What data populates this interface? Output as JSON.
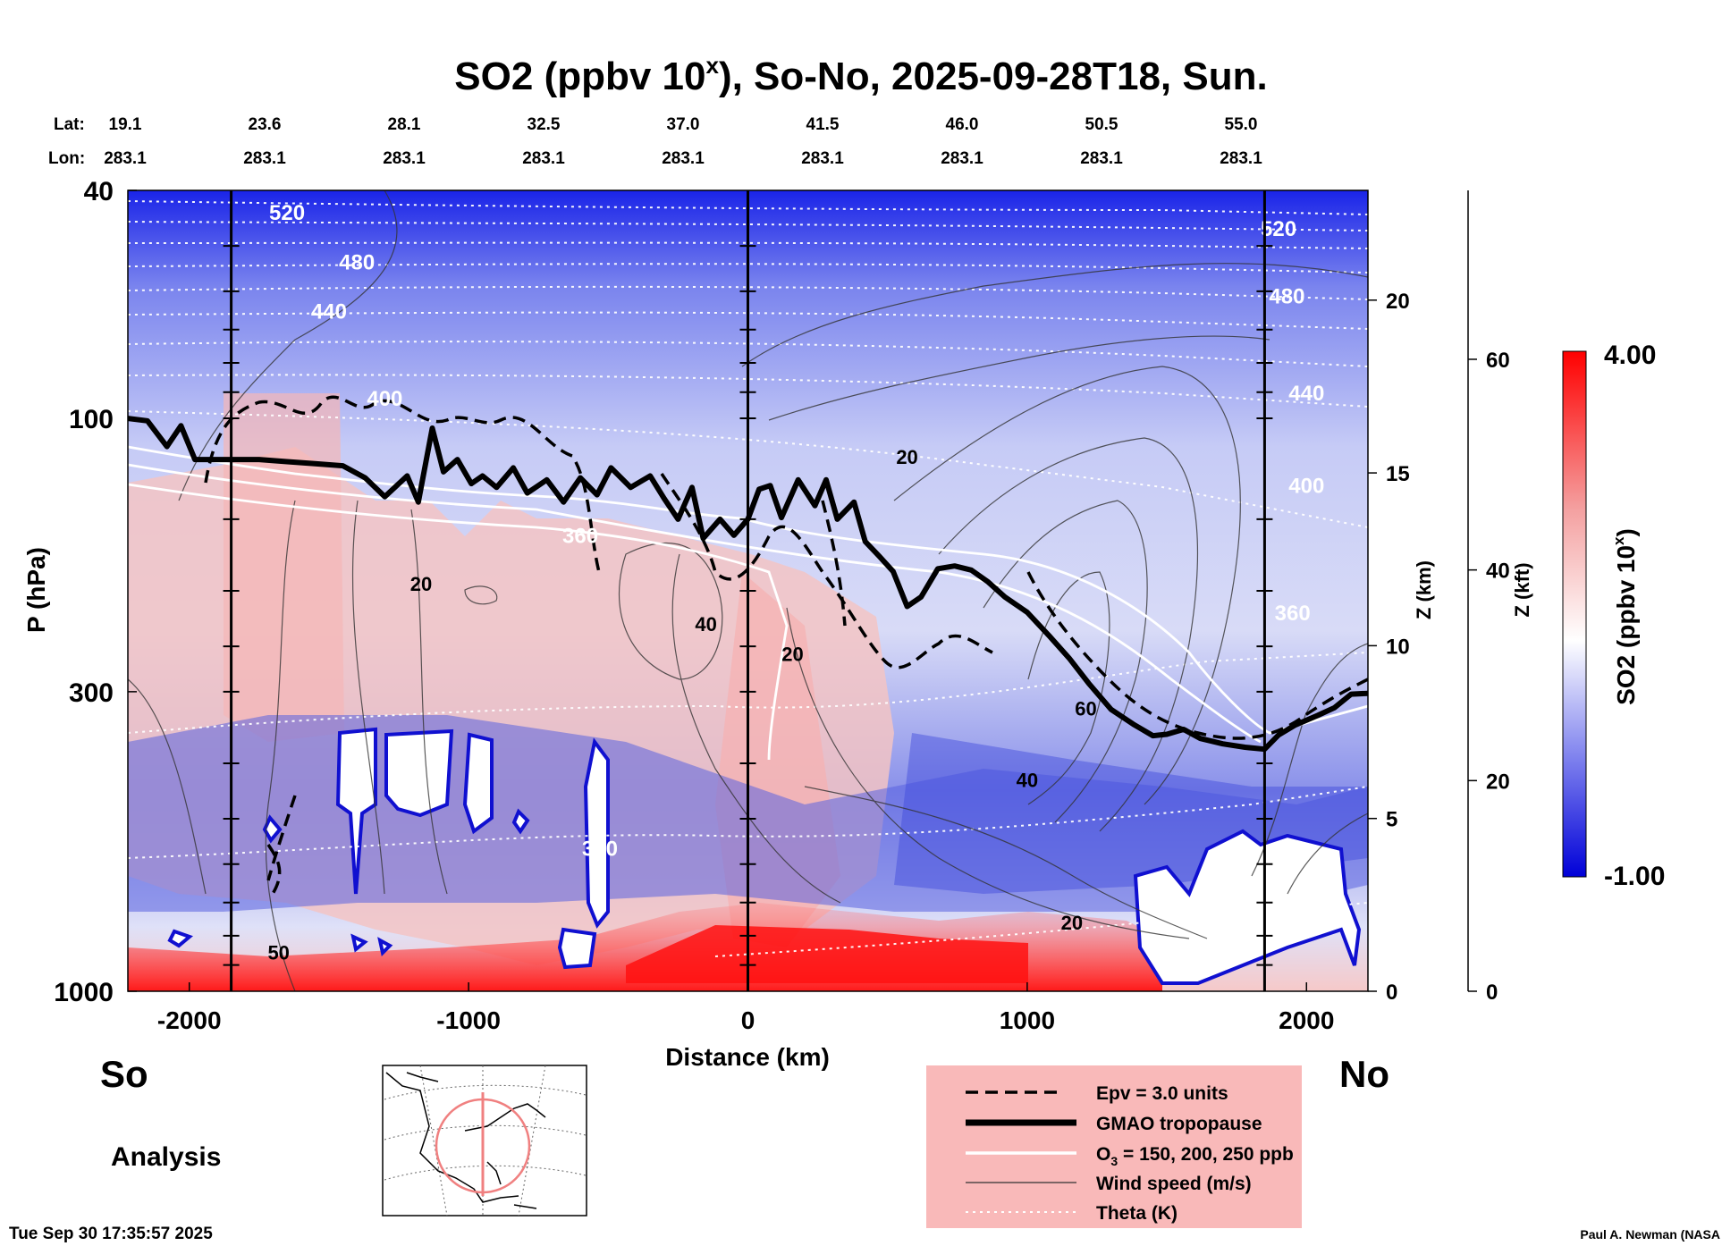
{
  "chart_data": {
    "type": "heatmap",
    "title": {
      "base": "SO2 (ppbv 10",
      "sup": "x",
      "rest": "), So-No, 2025-09-28T18, Sun."
    },
    "lat_label": "Lat:",
    "lon_label": "Lon:",
    "lat_ticks": [
      "19.1",
      "23.6",
      "28.1",
      "32.5",
      "37.0",
      "41.5",
      "46.0",
      "50.5",
      "55.0"
    ],
    "lon_ticks": [
      "283.1",
      "283.1",
      "283.1",
      "283.1",
      "283.1",
      "283.1",
      "283.1",
      "283.1",
      "283.1"
    ],
    "xlabel": "Distance (km)",
    "x_range": [
      -2220,
      2220
    ],
    "x_ticks": [
      -2000,
      -1000,
      0,
      1000,
      2000
    ],
    "ylabel": "P (hPa)",
    "p_range": [
      40,
      1000
    ],
    "p_ticks": [
      40,
      100,
      300,
      1000
    ],
    "zkm_label": "Z (km)",
    "zkm_ticks": [
      0,
      5,
      10,
      15,
      20
    ],
    "zkft_label": "Z (kft)",
    "zkft_ticks": [
      0,
      20,
      40,
      60
    ],
    "vertical_lines_km": [
      -1850,
      0,
      1850
    ],
    "colorbar": {
      "label_base": "SO2 (ppbv 10",
      "label_sup": "x",
      "label_end": ")",
      "min": "-1.00",
      "max": "4.00",
      "colors": [
        "#0000d8",
        "#8c8ff0",
        "#ffffff",
        "#f4a0a0",
        "#ff0000"
      ]
    },
    "theta_labels": [
      {
        "text": "520",
        "x": -1650,
        "p": 45
      },
      {
        "text": "480",
        "x": -1400,
        "p": 55
      },
      {
        "text": "440",
        "x": -1500,
        "p": 67
      },
      {
        "text": "400",
        "x": -1300,
        "p": 95
      },
      {
        "text": "360",
        "x": -600,
        "p": 165
      },
      {
        "text": "520",
        "x": 1900,
        "p": 48
      },
      {
        "text": "480",
        "x": 1930,
        "p": 63
      },
      {
        "text": "440",
        "x": 2000,
        "p": 93
      },
      {
        "text": "400",
        "x": 2000,
        "p": 135
      },
      {
        "text": "360",
        "x": 1950,
        "p": 225
      },
      {
        "text": "340",
        "x": -530,
        "p": 580
      }
    ],
    "wind_labels": [
      {
        "text": "20",
        "x": -1170,
        "p": 200
      },
      {
        "text": "40",
        "x": -150,
        "p": 235
      },
      {
        "text": "20",
        "x": 570,
        "p": 120
      },
      {
        "text": "20",
        "x": 160,
        "p": 265
      },
      {
        "text": "60",
        "x": 1210,
        "p": 330
      },
      {
        "text": "40",
        "x": 1000,
        "p": 440
      },
      {
        "text": "20",
        "x": 1160,
        "p": 780
      },
      {
        "text": "50",
        "x": -1680,
        "p": 880
      }
    ],
    "tropopause": {
      "x": [
        -2220,
        -2150,
        -2080,
        -2030,
        -1980,
        -1900,
        -1850,
        -1750,
        -1650,
        -1550,
        -1450,
        -1370,
        -1300,
        -1220,
        -1180,
        -1130,
        -1090,
        -1040,
        -990,
        -950,
        -900,
        -840,
        -790,
        -720,
        -660,
        -600,
        -540,
        -490,
        -420,
        -350,
        -300,
        -250,
        -200,
        -160,
        -100,
        -50,
        0,
        40,
        80,
        120,
        180,
        240,
        280,
        320,
        380,
        420,
        470,
        520,
        570,
        620,
        680,
        740,
        800,
        860,
        920,
        1000,
        1080,
        1150,
        1220,
        1300,
        1380,
        1450,
        1500,
        1560,
        1620,
        1700,
        1780,
        1850,
        1900,
        1960,
        2040,
        2100,
        2160,
        2220
      ],
      "p": [
        100,
        101,
        112,
        103,
        118,
        118,
        118,
        118,
        119,
        120,
        121,
        127,
        137,
        126,
        140,
        104,
        124,
        118,
        130,
        126,
        132,
        122,
        135,
        128,
        140,
        127,
        136,
        122,
        132,
        126,
        138,
        150,
        132,
        162,
        150,
        160,
        150,
        133,
        131,
        149,
        128,
        142,
        128,
        150,
        140,
        164,
        174,
        185,
        213,
        205,
        183,
        181,
        184,
        193,
        205,
        218,
        240,
        262,
        290,
        322,
        342,
        358,
        356,
        349,
        362,
        370,
        375,
        378,
        357,
        343,
        330,
        320,
        303,
        302
      ]
    },
    "o3_contours_ppb": "150, 200, 250",
    "legend": [
      {
        "label": "Epv = 3.0 units"
      },
      {
        "label": "GMAO tropopause"
      },
      {
        "label_base": "O",
        "label_sub": "3",
        "label_rest": " = 150, 200, 250 ppb"
      },
      {
        "label": "Wind speed (m/s)"
      },
      {
        "label": "Theta (K)"
      }
    ]
  },
  "corner_labels": {
    "so": "So",
    "no": "No",
    "analysis": "Analysis"
  },
  "footer": {
    "timestamp": "Tue Sep 30 17:35:57 2025",
    "credit": "Paul A. Newman (NASA"
  }
}
